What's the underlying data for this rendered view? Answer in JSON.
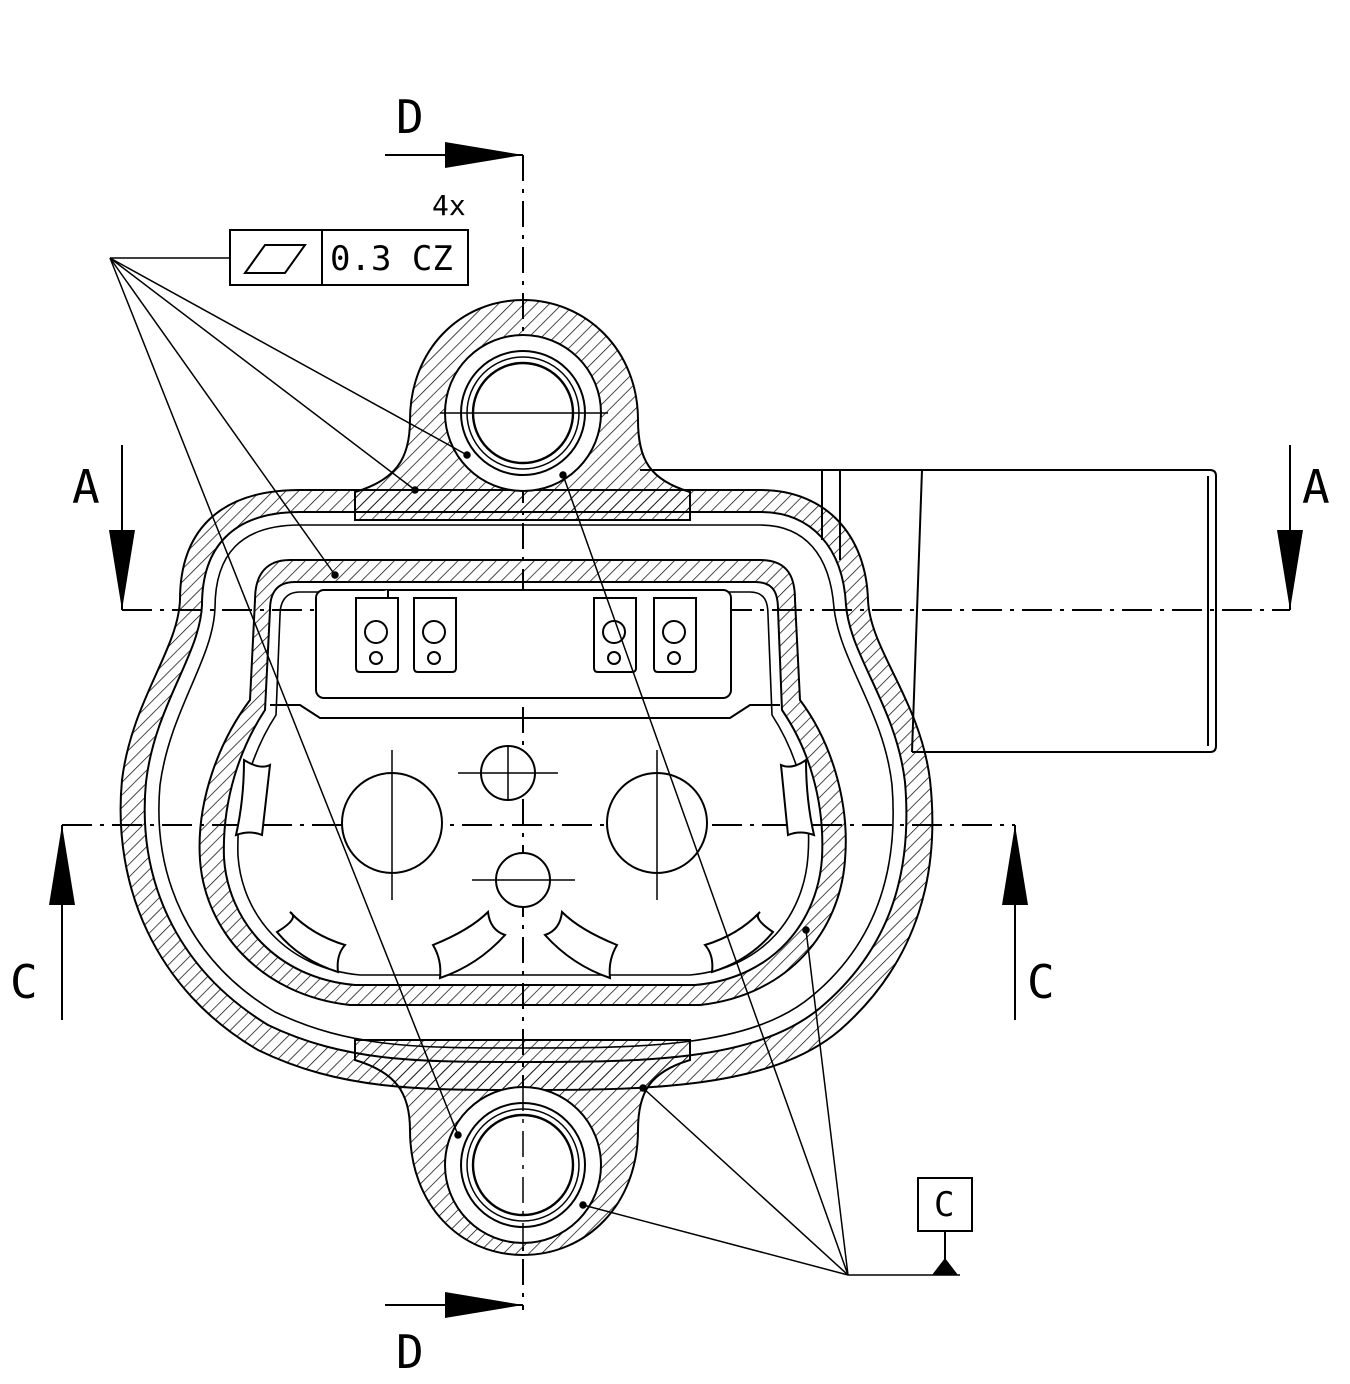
{
  "section_labels": {
    "d_top": "D",
    "d_bottom": "D",
    "a_left": "A",
    "a_right": "A",
    "c_left": "C",
    "c_right": "C"
  },
  "feature_control_frame": {
    "count_note": "4x",
    "symbol": "parallelism-symbol",
    "tolerance": "0.3 CZ"
  },
  "datum": {
    "label": "C"
  },
  "colors": {
    "line": "#000000",
    "background": "#ffffff"
  }
}
